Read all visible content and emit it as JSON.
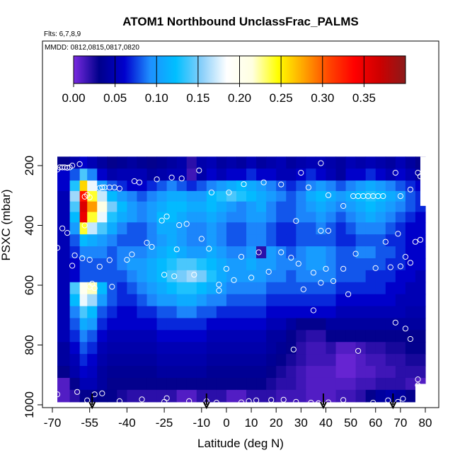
{
  "chart_data": {
    "type": "heatmap",
    "title": "ATOM1 Northbound UnclassFrac_PALMS",
    "subtitle": "Flts: 6,7,8,9",
    "annotation": "MMDD: 0812,0815,0817,0820",
    "xlabel": "Latitude (deg N)",
    "ylabel": "PSXC (mbar)",
    "xlim": [
      -70,
      80
    ],
    "ylim": [
      1000,
      150
    ],
    "y_reversed": true,
    "x_ticks": [
      "-70",
      "-55",
      "-40",
      "-25",
      "-10",
      "0",
      "10",
      "20",
      "30",
      "40",
      "50",
      "60",
      "70",
      "80"
    ],
    "y_ticks": [
      "200",
      "400",
      "600",
      "800",
      "1000"
    ],
    "grid": false,
    "colorbar": {
      "position": "top",
      "range": [
        0.0,
        0.4
      ],
      "ticks": [
        "0.00",
        "0.05",
        "0.10",
        "0.15",
        "0.20",
        "0.25",
        "0.30",
        "0.35"
      ],
      "stops": [
        "#7a2be0",
        "#00008b",
        "#0000cd",
        "#1e90ff",
        "#00bfff",
        "#87cefa",
        "#ffffff",
        "#ffffe0",
        "#ffff00",
        "#ffa500",
        "#ff4500",
        "#ff0000",
        "#cd0000",
        "#8b1a1a"
      ]
    },
    "arrows_lat": [
      -54,
      -8,
      39,
      67
    ],
    "x_edges": [
      -68,
      -63,
      -59,
      -56,
      -52,
      -48,
      -44,
      -40,
      -36,
      -32,
      -28,
      -24,
      -20,
      -16,
      -12,
      -8,
      -4,
      0,
      4,
      8,
      12,
      16,
      20,
      24,
      28,
      32,
      36,
      40,
      44,
      48,
      52,
      56,
      60,
      64,
      68,
      72,
      76,
      80
    ],
    "y_edges": [
      170,
      210,
      250,
      285,
      320,
      355,
      390,
      430,
      470,
      510,
      550,
      590,
      630,
      670,
      710,
      750,
      790,
      830,
      870,
      910,
      950,
      990
    ],
    "values": [
      [
        0.03,
        0.045,
        0.06,
        0.05,
        0.04,
        0.03,
        0.035,
        0.04,
        0.035,
        0.03,
        0.035,
        0.04,
        0.045,
        0.02,
        0.045,
        0.05,
        0.04,
        0.045,
        0.04,
        0.05,
        0.04,
        0.045,
        0.05,
        0.04,
        0.045,
        0.05,
        0.05,
        0.045,
        0.04,
        0.05,
        0.045,
        0.05,
        0.045,
        0.04,
        0.05,
        0.04,
        0.03
      ],
      [
        0.06,
        0.08,
        0.14,
        0.09,
        0.06,
        0.045,
        0.05,
        0.05,
        0.05,
        0.04,
        0.045,
        0.05,
        0.05,
        0.015,
        0.045,
        0.06,
        0.05,
        0.06,
        0.06,
        0.07,
        0.06,
        0.06,
        0.05,
        0.05,
        0.06,
        0.07,
        0.06,
        0.05,
        0.04,
        0.06,
        0.06,
        0.07,
        0.06,
        0.05,
        0.06,
        0.05,
        0.04
      ],
      [
        0.06,
        0.13,
        0.26,
        0.18,
        0.1,
        0.08,
        0.07,
        0.06,
        0.06,
        0.07,
        0.08,
        0.09,
        0.08,
        0.07,
        0.08,
        0.09,
        0.1,
        0.11,
        0.12,
        0.11,
        0.1,
        0.09,
        0.08,
        0.07,
        0.08,
        0.09,
        0.1,
        0.09,
        0.08,
        0.09,
        0.1,
        0.11,
        0.1,
        0.09,
        0.08,
        0.07,
        0.06
      ],
      [
        0.05,
        0.16,
        0.33,
        0.24,
        0.17,
        0.12,
        0.1,
        0.09,
        0.08,
        0.09,
        0.1,
        0.11,
        0.11,
        0.1,
        0.1,
        0.12,
        0.13,
        0.14,
        0.13,
        0.12,
        0.11,
        0.1,
        0.09,
        0.08,
        0.09,
        0.11,
        0.12,
        0.11,
        0.1,
        0.11,
        0.12,
        0.13,
        0.12,
        0.11,
        0.1,
        0.08,
        0.07
      ],
      [
        0.05,
        0.14,
        0.36,
        0.28,
        0.21,
        0.15,
        0.12,
        0.1,
        0.09,
        0.1,
        0.11,
        0.12,
        0.12,
        0.11,
        0.11,
        0.12,
        0.11,
        0.1,
        0.09,
        0.1,
        0.11,
        0.09,
        0.08,
        0.08,
        0.09,
        0.1,
        0.11,
        0.1,
        0.09,
        0.1,
        0.11,
        0.12,
        0.11,
        0.1,
        0.09,
        0.08,
        0.07
      ],
      [
        0.05,
        0.12,
        0.35,
        0.24,
        0.18,
        0.13,
        0.11,
        0.1,
        0.09,
        0.1,
        0.12,
        0.12,
        0.11,
        0.1,
        0.1,
        0.11,
        0.1,
        0.09,
        0.09,
        0.1,
        0.1,
        0.09,
        0.08,
        0.08,
        0.09,
        0.09,
        0.1,
        0.09,
        0.08,
        0.09,
        0.1,
        0.11,
        0.1,
        0.09,
        0.08,
        0.07,
        0.06
      ],
      [
        0.05,
        0.1,
        0.24,
        0.17,
        0.14,
        0.11,
        0.09,
        0.08,
        0.08,
        0.09,
        0.11,
        0.11,
        0.1,
        0.09,
        0.09,
        0.1,
        0.09,
        0.08,
        0.08,
        0.09,
        0.09,
        0.08,
        0.07,
        0.07,
        0.08,
        0.08,
        0.09,
        0.08,
        0.07,
        0.08,
        0.09,
        0.09,
        0.09,
        0.08,
        0.07,
        0.06,
        0.06
      ],
      [
        0.05,
        0.08,
        0.12,
        0.11,
        0.1,
        0.09,
        0.08,
        0.08,
        0.08,
        0.09,
        0.1,
        0.11,
        0.1,
        0.09,
        0.09,
        0.1,
        0.09,
        0.08,
        0.08,
        0.09,
        0.09,
        0.08,
        0.07,
        0.07,
        0.08,
        0.08,
        0.08,
        0.08,
        0.07,
        0.07,
        0.08,
        0.08,
        0.08,
        0.07,
        0.07,
        0.06,
        0.06
      ],
      [
        0.05,
        0.07,
        0.09,
        0.09,
        0.09,
        0.08,
        0.09,
        0.09,
        0.09,
        0.1,
        0.11,
        0.12,
        0.11,
        0.1,
        0.1,
        0.11,
        0.1,
        0.09,
        0.09,
        0.1,
        0.02,
        0.1,
        0.09,
        0.08,
        0.09,
        0.1,
        0.1,
        0.09,
        0.08,
        0.08,
        0.09,
        0.09,
        0.08,
        0.08,
        0.07,
        0.06,
        0.06
      ],
      [
        0.05,
        0.06,
        0.08,
        0.08,
        0.08,
        0.08,
        0.09,
        0.1,
        0.1,
        0.11,
        0.12,
        0.13,
        0.14,
        0.14,
        0.13,
        0.12,
        0.11,
        0.1,
        0.1,
        0.11,
        0.1,
        0.1,
        0.09,
        0.09,
        0.09,
        0.1,
        0.1,
        0.09,
        0.08,
        0.08,
        0.08,
        0.08,
        0.08,
        0.07,
        0.07,
        0.06,
        0.06
      ],
      [
        0.05,
        0.06,
        0.08,
        0.08,
        0.08,
        0.08,
        0.08,
        0.09,
        0.1,
        0.11,
        0.12,
        0.14,
        0.15,
        0.16,
        0.15,
        0.13,
        0.11,
        0.1,
        0.1,
        0.1,
        0.1,
        0.09,
        0.09,
        0.08,
        0.09,
        0.09,
        0.09,
        0.09,
        0.08,
        0.08,
        0.08,
        0.07,
        0.07,
        0.07,
        0.06,
        0.06,
        0.05
      ],
      [
        0.05,
        0.14,
        0.2,
        0.22,
        0.12,
        0.08,
        0.07,
        0.08,
        0.09,
        0.1,
        0.11,
        0.12,
        0.13,
        0.13,
        0.12,
        0.11,
        0.1,
        0.09,
        0.09,
        0.09,
        0.09,
        0.08,
        0.08,
        0.08,
        0.08,
        0.08,
        0.08,
        0.08,
        0.07,
        0.07,
        0.07,
        0.07,
        0.07,
        0.06,
        0.06,
        0.05,
        0.05
      ],
      [
        0.05,
        0.12,
        0.18,
        0.16,
        0.1,
        0.08,
        0.07,
        0.07,
        0.08,
        0.09,
        0.1,
        0.1,
        0.11,
        0.11,
        0.1,
        0.09,
        0.09,
        0.08,
        0.08,
        0.08,
        0.08,
        0.07,
        0.07,
        0.07,
        0.07,
        0.07,
        0.07,
        0.07,
        0.06,
        0.06,
        0.06,
        0.06,
        0.06,
        0.06,
        0.05,
        0.05,
        0.05
      ],
      [
        0.05,
        0.09,
        0.14,
        0.12,
        0.08,
        0.07,
        0.06,
        0.06,
        0.07,
        0.07,
        0.08,
        0.08,
        0.09,
        0.09,
        0.08,
        0.08,
        0.07,
        0.07,
        0.07,
        0.07,
        0.07,
        0.06,
        0.06,
        0.06,
        0.06,
        0.06,
        0.06,
        0.06,
        0.05,
        0.05,
        0.05,
        0.05,
        0.05,
        0.05,
        0.05,
        0.045,
        0.045
      ],
      [
        0.05,
        0.08,
        0.11,
        0.1,
        0.07,
        0.06,
        0.06,
        0.06,
        0.06,
        0.06,
        0.07,
        0.07,
        0.07,
        0.07,
        0.07,
        0.06,
        0.06,
        0.06,
        0.06,
        0.06,
        0.06,
        0.05,
        0.05,
        0.04,
        0.03,
        0.03,
        0.03,
        0.04,
        0.04,
        0.04,
        0.04,
        0.04,
        0.04,
        0.04,
        0.04,
        0.04,
        0.04
      ],
      [
        0.05,
        0.07,
        0.09,
        0.08,
        0.06,
        0.05,
        0.05,
        0.05,
        0.05,
        0.05,
        0.06,
        0.06,
        0.06,
        0.06,
        0.06,
        0.05,
        0.05,
        0.05,
        0.05,
        0.05,
        0.05,
        0.04,
        0.04,
        0.03,
        0.025,
        0.02,
        0.02,
        0.03,
        0.03,
        0.03,
        0.03,
        0.03,
        0.03,
        0.03,
        0.03,
        0.03,
        0.03
      ],
      [
        0.04,
        0.06,
        0.08,
        0.07,
        0.05,
        0.045,
        0.045,
        0.045,
        0.045,
        0.045,
        0.05,
        0.05,
        0.05,
        0.05,
        0.05,
        0.045,
        0.045,
        0.045,
        0.045,
        0.045,
        0.045,
        0.04,
        0.035,
        0.03,
        0.02,
        0.015,
        0.015,
        0.02,
        0.01,
        0.01,
        0.015,
        0.02,
        0.02,
        0.025,
        0.025,
        0.03,
        0.03
      ],
      [
        0.04,
        0.05,
        0.07,
        0.06,
        0.045,
        0.04,
        0.04,
        0.04,
        0.04,
        0.04,
        0.045,
        0.045,
        0.045,
        0.045,
        0.045,
        0.04,
        0.04,
        0.04,
        0.04,
        0.04,
        0.04,
        0.035,
        0.03,
        0.025,
        0.02,
        0.015,
        0.015,
        0.015,
        0.005,
        0.005,
        0.01,
        0.015,
        0.015,
        0.02,
        0.02,
        0.025,
        0.025
      ],
      [
        0.03,
        0.045,
        0.06,
        0.055,
        0.04,
        0.035,
        0.035,
        0.035,
        0.035,
        0.035,
        0.04,
        0.04,
        0.04,
        0.04,
        0.04,
        0.035,
        0.035,
        0.035,
        0.035,
        0.035,
        0.035,
        0.03,
        0.025,
        0.02,
        0.015,
        0.01,
        0.01,
        0.01,
        0.005,
        0.005,
        0.01,
        0.01,
        0.015,
        0.015,
        0.02,
        0.02,
        0.02
      ],
      [
        0.01,
        0.03,
        0.05,
        0.05,
        0.04,
        0.03,
        0.03,
        0.03,
        0.03,
        0.03,
        0.03,
        0.03,
        0.03,
        0.03,
        0.03,
        0.03,
        0.03,
        0.03,
        0.03,
        0.03,
        0.03,
        0.025,
        0.02,
        0.02,
        0.015,
        0.01,
        0.01,
        0.01,
        0.01,
        0.01,
        0.015,
        0.015,
        0.02,
        0.02,
        0.02,
        0.015,
        0.01
      ],
      [
        0.01,
        0.02,
        0.03,
        0.03,
        0.03,
        0.03,
        0.025,
        0.02,
        0.02,
        0.02,
        0.02,
        0.02,
        0.01,
        0.01,
        0.02,
        0.02,
        0.02,
        0.01,
        0.01,
        0.02,
        0.02,
        0.02,
        0.015,
        0.015,
        0.015,
        0.01,
        0.01,
        0.01,
        0.015,
        0.015,
        0.02,
        0.03,
        0.04,
        0.045,
        0.04,
        0.03,
        0.02
      ]
    ],
    "gaps": [
      {
        "x": [
          78,
          80
        ],
        "y": [
          170,
          330
        ]
      },
      {
        "x": [
          76,
          80
        ],
        "y": [
          930,
          1000
        ]
      }
    ],
    "samples": [
      [
        -68,
        213
      ],
      [
        -67,
        206
      ],
      [
        -66,
        206
      ],
      [
        -65,
        206
      ],
      [
        -64,
        207
      ],
      [
        -63,
        206
      ],
      [
        -62,
        200
      ],
      [
        -59,
        195
      ],
      [
        -51,
        275
      ],
      [
        -50,
        273
      ],
      [
        -49,
        273
      ],
      [
        -47,
        273
      ],
      [
        -45,
        273
      ],
      [
        -43,
        277
      ],
      [
        -37,
        252
      ],
      [
        -35,
        256
      ],
      [
        -28,
        246
      ],
      [
        -22,
        240
      ],
      [
        -18,
        243
      ],
      [
        -11,
        216
      ],
      [
        -6,
        290
      ],
      [
        1,
        290
      ],
      [
        7,
        262
      ],
      [
        15,
        256
      ],
      [
        22,
        263
      ],
      [
        30,
        224
      ],
      [
        33,
        273
      ],
      [
        38,
        192
      ],
      [
        41,
        299
      ],
      [
        47,
        335
      ],
      [
        51,
        302
      ],
      [
        53,
        302
      ],
      [
        55,
        302
      ],
      [
        57,
        302
      ],
      [
        59,
        302
      ],
      [
        61,
        302
      ],
      [
        63,
        302
      ],
      [
        68,
        224
      ],
      [
        70,
        302
      ],
      [
        74,
        280
      ],
      [
        77,
        224
      ],
      [
        78,
        236
      ],
      [
        -57,
        304
      ],
      [
        -56,
        298
      ],
      [
        -55,
        306
      ],
      [
        -26,
        384
      ],
      [
        -24,
        370
      ],
      [
        -19,
        399
      ],
      [
        -16,
        395
      ],
      [
        28,
        385
      ],
      [
        38,
        418
      ],
      [
        41,
        418
      ],
      [
        69,
        428
      ],
      [
        -57,
        400
      ],
      [
        -64,
        425
      ],
      [
        -66,
        410
      ],
      [
        -68,
        475
      ],
      [
        -61,
        500
      ],
      [
        -58,
        510
      ],
      [
        -55,
        515
      ],
      [
        -51,
        538
      ],
      [
        -47,
        516
      ],
      [
        -40,
        515
      ],
      [
        -38,
        497
      ],
      [
        -32,
        458
      ],
      [
        -30,
        472
      ],
      [
        -20,
        480
      ],
      [
        -13,
        565
      ],
      [
        -10,
        445
      ],
      [
        -7,
        478
      ],
      [
        -3,
        618
      ],
      [
        0,
        545
      ],
      [
        3,
        583
      ],
      [
        6,
        505
      ],
      [
        10,
        575
      ],
      [
        13,
        490
      ],
      [
        17,
        555
      ],
      [
        22,
        490
      ],
      [
        26,
        508
      ],
      [
        29,
        528
      ],
      [
        31,
        614
      ],
      [
        35,
        558
      ],
      [
        38,
        592
      ],
      [
        40,
        545
      ],
      [
        43,
        586
      ],
      [
        47,
        545
      ],
      [
        49,
        630
      ],
      [
        52,
        495
      ],
      [
        60,
        543
      ],
      [
        64,
        455
      ],
      [
        66,
        540
      ],
      [
        70,
        537
      ],
      [
        72,
        505
      ],
      [
        74,
        525
      ],
      [
        76,
        455
      ],
      [
        78,
        448
      ],
      [
        -62,
        535
      ],
      [
        -55,
        605
      ],
      [
        -54,
        595
      ],
      [
        -53,
        610
      ],
      [
        -46,
        605
      ],
      [
        -25,
        565
      ],
      [
        -21,
        570
      ],
      [
        -3,
        598
      ],
      [
        35,
        684
      ],
      [
        68,
        725
      ],
      [
        72,
        745
      ],
      [
        74,
        780
      ],
      [
        53,
        820
      ],
      [
        27,
        815
      ],
      [
        77,
        915
      ],
      [
        77,
        935
      ],
      [
        -68,
        965
      ],
      [
        -60,
        957
      ],
      [
        -56,
        985
      ],
      [
        -53,
        965
      ],
      [
        -50,
        962
      ],
      [
        -43,
        988
      ],
      [
        -34,
        982
      ],
      [
        -25,
        990
      ],
      [
        -24,
        978
      ],
      [
        -15,
        988
      ],
      [
        -8,
        988
      ],
      [
        -4,
        993
      ],
      [
        6,
        992
      ],
      [
        9,
        988
      ],
      [
        12,
        985
      ],
      [
        18,
        984
      ],
      [
        23,
        983
      ],
      [
        28,
        990
      ],
      [
        34,
        993
      ],
      [
        37,
        995
      ],
      [
        41,
        992
      ],
      [
        47,
        984
      ],
      [
        59,
        993
      ],
      [
        65,
        985
      ],
      [
        69,
        990
      ],
      [
        71,
        980
      ]
    ]
  }
}
